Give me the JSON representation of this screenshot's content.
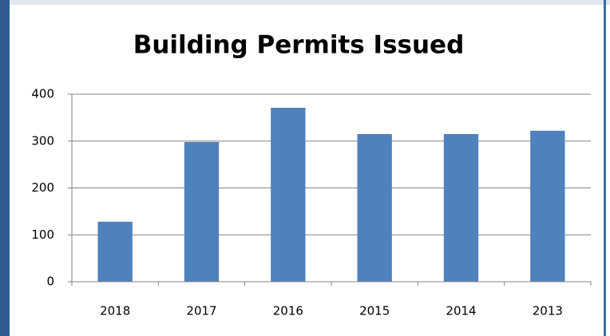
{
  "chart_data": {
    "type": "bar",
    "title": "Building Permits Issued",
    "categories": [
      "2018",
      "2017",
      "2016",
      "2015",
      "2014",
      "2013"
    ],
    "values": [
      128,
      298,
      371,
      315,
      315,
      322
    ],
    "color": "#4f81bd",
    "ylim": [
      0,
      400
    ],
    "yticks": [
      0,
      100,
      200,
      300,
      400
    ],
    "grid": true
  }
}
